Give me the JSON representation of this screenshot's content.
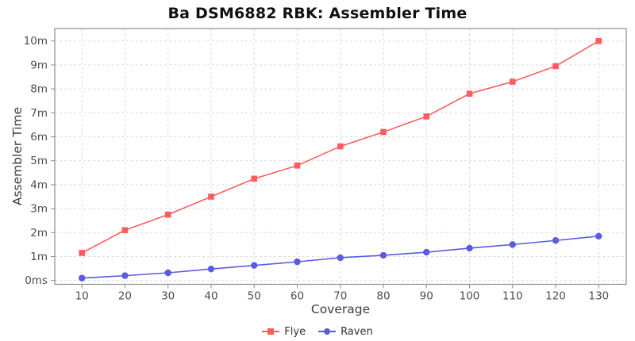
{
  "title": "Ba DSM6882 RBK: Assembler Time",
  "axes": {
    "x_title": "Coverage",
    "y_title": "Assembler Time"
  },
  "colors": {
    "flye": "#FB5D5D",
    "raven": "#5B5BDF",
    "gridline": "#DBDBDB",
    "plot_border": "#8C8C8C",
    "tick_label": "#4D4D4D"
  },
  "chart_data": {
    "type": "line",
    "title": "Ba DSM6882 RBK: Assembler Time",
    "xlabel": "Coverage",
    "ylabel": "Assembler Time",
    "x": [
      10,
      20,
      30,
      40,
      50,
      60,
      70,
      80,
      90,
      100,
      110,
      120,
      130
    ],
    "series": [
      {
        "name": "Flye",
        "color": "#FB5D5D",
        "marker": "square",
        "values_minutes": [
          1.15,
          2.1,
          2.75,
          3.5,
          4.25,
          4.8,
          5.6,
          6.2,
          6.85,
          7.8,
          8.3,
          8.95,
          10.0
        ]
      },
      {
        "name": "Raven",
        "color": "#5B5BDF",
        "marker": "circle",
        "values_minutes": [
          0.1,
          0.2,
          0.32,
          0.48,
          0.63,
          0.78,
          0.95,
          1.05,
          1.18,
          1.35,
          1.5,
          1.67,
          1.85
        ]
      }
    ],
    "y_ticks": {
      "values": [
        0,
        1,
        2,
        3,
        4,
        5,
        6,
        7,
        8,
        9,
        10
      ],
      "labels": [
        "0ms",
        "1m",
        "2m",
        "3m",
        "4m",
        "5m",
        "6m",
        "7m",
        "8m",
        "9m",
        "10m"
      ]
    },
    "xlim": [
      3.7,
      136.4
    ],
    "ylim": [
      -0.16,
      10.52
    ],
    "grid": true,
    "grid_style": "dashed",
    "legend_position": "bottom"
  }
}
